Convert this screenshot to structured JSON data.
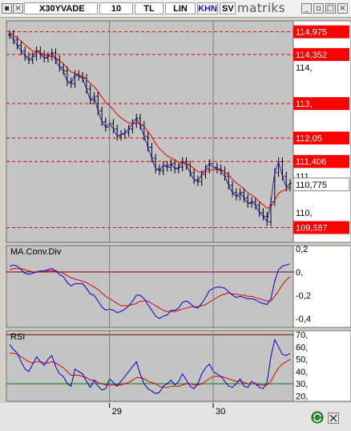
{
  "toolbar": {
    "symbol": "X30YVADE",
    "period": "10",
    "currency": "TL",
    "scale": "LIN",
    "mode": "KHN",
    "chart_style": "SV",
    "brand": "matriks"
  },
  "colors": {
    "price": "#000000",
    "ma": "#e00000",
    "osc": "#0000d0",
    "signal": "#e00000",
    "level_line": "#e00000",
    "rsi_low": "#008000",
    "label_bg": "#ff0000",
    "label_fg": "#ffffff"
  },
  "chart_data": [
    {
      "type": "candlestick",
      "title": "",
      "ylim": [
        109.4,
        115.1
      ],
      "levels": [
        {
          "value": 114.975,
          "label": "114,975"
        },
        {
          "value": 114.352,
          "label": "114,352"
        },
        {
          "value": 113.0,
          "label": "113,"
        },
        {
          "value": 112.05,
          "label": "112,05"
        },
        {
          "value": 111.406,
          "label": "111,406"
        },
        {
          "value": 109.587,
          "label": "109,587"
        }
      ],
      "y_ticks": [
        {
          "value": 114,
          "label": "114,"
        },
        {
          "value": 113,
          "label": "113,"
        },
        {
          "value": 111,
          "label": "111,"
        },
        {
          "value": 110,
          "label": "110,"
        }
      ],
      "last_price": {
        "value": 110.775,
        "label": "110,775"
      },
      "x_ticks": [
        {
          "index": 26,
          "label": "29"
        },
        {
          "index": 53,
          "label": "30"
        }
      ],
      "series": [
        {
          "kind": "price",
          "values": [
            114.9,
            114.75,
            114.6,
            114.45,
            114.3,
            114.2,
            114.3,
            114.45,
            114.35,
            114.25,
            114.3,
            114.4,
            114.2,
            114.0,
            113.9,
            113.6,
            113.55,
            113.8,
            113.75,
            113.7,
            113.4,
            113.1,
            113.2,
            112.8,
            112.5,
            112.35,
            112.45,
            112.3,
            112.1,
            112.15,
            112.2,
            112.3,
            112.45,
            112.6,
            112.4,
            112.1,
            111.8,
            111.5,
            111.2,
            111.15,
            111.3,
            111.25,
            111.35,
            111.2,
            111.25,
            111.4,
            111.3,
            111.1,
            110.9,
            110.85,
            111.05,
            111.2,
            111.35,
            111.25,
            111.2,
            111.15,
            111.0,
            110.75,
            110.55,
            110.45,
            110.55,
            110.4,
            110.25,
            110.3,
            110.2,
            110.0,
            109.9,
            109.75,
            110.3,
            111.1,
            111.4,
            111.0,
            110.7,
            110.8
          ]
        },
        {
          "kind": "ma",
          "values": [
            114.95,
            114.88,
            114.8,
            114.72,
            114.62,
            114.53,
            114.45,
            114.43,
            114.4,
            114.35,
            114.31,
            114.3,
            114.26,
            114.18,
            114.1,
            113.98,
            113.87,
            113.83,
            113.79,
            113.75,
            113.67,
            113.55,
            113.47,
            113.33,
            113.18,
            113.03,
            112.94,
            112.83,
            112.7,
            112.61,
            112.53,
            112.47,
            112.45,
            112.47,
            112.45,
            112.37,
            112.24,
            112.08,
            111.9,
            111.76,
            111.66,
            111.56,
            111.51,
            111.44,
            111.39,
            111.38,
            111.36,
            111.3,
            111.21,
            111.13,
            111.1,
            111.12,
            111.16,
            111.18,
            111.19,
            111.18,
            111.13,
            111.03,
            110.92,
            110.81,
            110.74,
            110.65,
            110.55,
            110.48,
            110.4,
            110.3,
            110.21,
            110.12,
            110.16,
            110.34,
            110.53,
            110.6,
            110.63,
            110.66
          ]
        }
      ]
    },
    {
      "type": "line",
      "title": "MA.Conv.Div",
      "ylim": [
        -0.45,
        0.2
      ],
      "y_ticks": [
        {
          "value": 0.2,
          "label": "0,2"
        },
        {
          "value": 0.0,
          "label": "0,"
        },
        {
          "value": -0.2,
          "label": "-0,2"
        },
        {
          "value": -0.4,
          "label": "-0,4"
        }
      ],
      "zero_line": 0,
      "series": [
        {
          "kind": "osc",
          "values": [
            0.05,
            0.06,
            0.05,
            0.02,
            -0.01,
            -0.02,
            -0.01,
            0.0,
            0.01,
            0.01,
            0.02,
            0.03,
            0.01,
            -0.02,
            -0.04,
            -0.09,
            -0.12,
            -0.1,
            -0.1,
            -0.1,
            -0.14,
            -0.19,
            -0.2,
            -0.25,
            -0.3,
            -0.33,
            -0.32,
            -0.33,
            -0.35,
            -0.34,
            -0.32,
            -0.29,
            -0.25,
            -0.2,
            -0.2,
            -0.23,
            -0.28,
            -0.33,
            -0.38,
            -0.4,
            -0.38,
            -0.37,
            -0.33,
            -0.33,
            -0.31,
            -0.26,
            -0.25,
            -0.27,
            -0.3,
            -0.31,
            -0.27,
            -0.22,
            -0.16,
            -0.14,
            -0.13,
            -0.13,
            -0.14,
            -0.17,
            -0.2,
            -0.22,
            -0.21,
            -0.22,
            -0.23,
            -0.23,
            -0.24,
            -0.26,
            -0.27,
            -0.28,
            -0.23,
            -0.08,
            0.02,
            0.05,
            0.06,
            0.07
          ]
        },
        {
          "kind": "signal",
          "values": [
            0.02,
            0.03,
            0.03,
            0.03,
            0.02,
            0.01,
            0.0,
            0.0,
            0.0,
            0.0,
            0.01,
            0.01,
            0.01,
            0.0,
            -0.01,
            -0.03,
            -0.05,
            -0.06,
            -0.07,
            -0.08,
            -0.09,
            -0.11,
            -0.13,
            -0.15,
            -0.18,
            -0.21,
            -0.23,
            -0.25,
            -0.27,
            -0.29,
            -0.29,
            -0.29,
            -0.28,
            -0.27,
            -0.25,
            -0.25,
            -0.25,
            -0.27,
            -0.29,
            -0.31,
            -0.33,
            -0.34,
            -0.34,
            -0.34,
            -0.33,
            -0.32,
            -0.31,
            -0.3,
            -0.3,
            -0.3,
            -0.29,
            -0.28,
            -0.26,
            -0.24,
            -0.22,
            -0.2,
            -0.19,
            -0.18,
            -0.19,
            -0.19,
            -0.2,
            -0.2,
            -0.21,
            -0.21,
            -0.22,
            -0.23,
            -0.24,
            -0.25,
            -0.25,
            -0.21,
            -0.16,
            -0.11,
            -0.07,
            -0.04
          ]
        }
      ]
    },
    {
      "type": "line",
      "title": "RSI",
      "ylim": [
        17,
        72
      ],
      "y_ticks": [
        {
          "value": 70,
          "label": "70,"
        },
        {
          "value": 60,
          "label": "60,"
        },
        {
          "value": 50,
          "label": "50,"
        },
        {
          "value": 40,
          "label": "40,"
        },
        {
          "value": 30,
          "label": "30,"
        },
        {
          "value": 20,
          "label": "20,"
        }
      ],
      "levels": [
        {
          "value": 70,
          "kind": "high"
        },
        {
          "value": 30,
          "kind": "low"
        }
      ],
      "series": [
        {
          "kind": "osc",
          "values": [
            62,
            58,
            55,
            48,
            42,
            40,
            46,
            52,
            48,
            45,
            50,
            53,
            44,
            38,
            36,
            30,
            28,
            42,
            40,
            38,
            32,
            27,
            33,
            28,
            25,
            26,
            34,
            31,
            28,
            32,
            36,
            40,
            44,
            48,
            38,
            30,
            26,
            24,
            22,
            23,
            28,
            30,
            33,
            29,
            32,
            38,
            33,
            28,
            26,
            30,
            38,
            43,
            46,
            40,
            38,
            36,
            32,
            28,
            27,
            30,
            34,
            28,
            27,
            32,
            30,
            27,
            26,
            31,
            52,
            66,
            60,
            54,
            53,
            55
          ]
        },
        {
          "kind": "signal",
          "values": [
            55,
            55,
            54,
            52,
            50,
            48,
            47,
            48,
            48,
            47,
            47,
            48,
            47,
            45,
            43,
            40,
            37,
            37,
            37,
            36,
            35,
            33,
            33,
            31,
            30,
            29,
            29,
            29,
            29,
            29,
            30,
            31,
            33,
            35,
            35,
            34,
            32,
            31,
            30,
            28,
            27,
            27,
            28,
            28,
            28,
            29,
            30,
            30,
            29,
            29,
            30,
            32,
            34,
            36,
            36,
            36,
            35,
            34,
            33,
            32,
            32,
            31,
            30,
            30,
            30,
            29,
            29,
            29,
            32,
            38,
            43,
            46,
            48,
            50
          ]
        }
      ]
    }
  ]
}
